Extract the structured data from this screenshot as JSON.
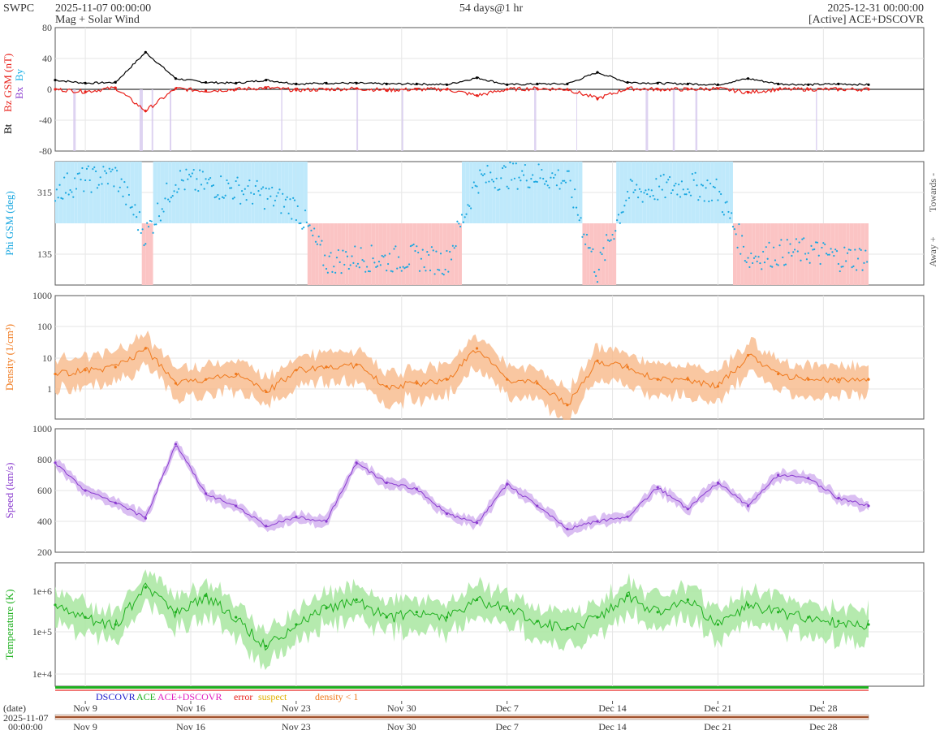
{
  "header": {
    "app": "SWPC",
    "start": "2025-11-07 00:00:00",
    "subtitle": "Mag + Solar Wind",
    "span": "54 days@1 hr",
    "end": "2025-12-31 00:00:00",
    "source": "[Active] ACE+DSCOVR"
  },
  "colors": {
    "bt": "#000000",
    "bz": "#e8201a",
    "bx": "#8a3ccf",
    "by": "#19b0e6",
    "towards": "#bfe9fb",
    "away": "#fbc4c4",
    "phi": "#19a7e0",
    "density": "#f07a1e",
    "density_band": "#f7b98a",
    "speed": "#8a3ccf",
    "speed_band": "#d4b3f0",
    "temp": "#1fb01f",
    "temp_band": "#a8e6a0",
    "axis": "#555555",
    "grid": "#e6e6e6"
  },
  "legend": {
    "dscovr": "DSCOVR",
    "ace": "ACE",
    "ace_dscovr": "ACE+DSCOVR",
    "error": "error",
    "suspect": "suspect",
    "density_flag": "density < 1"
  },
  "date_axis": {
    "label": "(date)",
    "start_date": "2025-11-07",
    "start_time": "00:00:00",
    "ticks": [
      "Nov 9",
      "Nov 16",
      "Nov 23",
      "Nov 30",
      "Dec 7",
      "Dec 14",
      "Dec 21",
      "Dec 28"
    ]
  },
  "chart_data": [
    {
      "type": "line",
      "name": "mag",
      "ylabel_parts": [
        "Bt",
        "Bz GSM (nT)",
        "Bx",
        "By"
      ],
      "ylim": [
        -80,
        80
      ],
      "yticks": [
        "80",
        "40",
        "0",
        "-40",
        "-80"
      ],
      "x": [
        0,
        2,
        4,
        6,
        8,
        10,
        12,
        14,
        16,
        18,
        20,
        22,
        24,
        26,
        28,
        30,
        32,
        34,
        36,
        38,
        40,
        42,
        44,
        46,
        48,
        50,
        52,
        54
      ],
      "series": [
        {
          "name": "Bt",
          "values": [
            12,
            8,
            9,
            48,
            14,
            9,
            8,
            12,
            7,
            8,
            8,
            7,
            7,
            6,
            15,
            6,
            7,
            7,
            22,
            9,
            8,
            7,
            6,
            14,
            7,
            6,
            7,
            6
          ]
        },
        {
          "name": "Bz GSM",
          "values": [
            0,
            -3,
            2,
            -28,
            1,
            -2,
            0,
            2,
            -1,
            0,
            1,
            -1,
            0,
            0,
            -8,
            0,
            1,
            0,
            -12,
            1,
            0,
            0,
            1,
            -4,
            0,
            0,
            0,
            0
          ]
        }
      ]
    },
    {
      "type": "scatter",
      "name": "phi",
      "ylabel": "Phi GSM (deg)",
      "yticks": [
        "315",
        "135"
      ],
      "right_labels": [
        "Towards -",
        "Away +"
      ],
      "x": [
        0,
        2,
        4,
        6,
        8,
        10,
        12,
        14,
        16,
        18,
        20,
        22,
        24,
        26,
        28,
        30,
        32,
        34,
        36,
        38,
        40,
        42,
        44,
        46,
        48,
        50,
        52,
        54
      ],
      "values": [
        300,
        320,
        330,
        200,
        320,
        310,
        300,
        285,
        260,
        140,
        150,
        145,
        150,
        140,
        320,
        330,
        330,
        320,
        120,
        290,
        300,
        310,
        295,
        150,
        160,
        165,
        150,
        150
      ]
    },
    {
      "type": "line",
      "name": "density",
      "ylabel": "Density (1/cm³)",
      "scale": "log",
      "yticks": [
        "1000",
        "100",
        "10",
        "1"
      ],
      "x": [
        0,
        2,
        4,
        6,
        8,
        10,
        12,
        14,
        16,
        18,
        20,
        22,
        24,
        26,
        28,
        30,
        32,
        34,
        36,
        38,
        40,
        42,
        44,
        46,
        48,
        50,
        52,
        54
      ],
      "values": [
        3,
        4,
        5,
        20,
        1.5,
        2,
        3,
        0.8,
        4,
        5,
        6,
        1.2,
        1.5,
        2,
        20,
        2,
        1.5,
        0.3,
        8,
        5,
        2,
        2,
        1.2,
        12,
        3,
        2,
        2,
        2
      ]
    },
    {
      "type": "line",
      "name": "speed",
      "ylabel": "Speed (km/s)",
      "ylim": [
        200,
        1000
      ],
      "yticks": [
        "1000",
        "800",
        "600",
        "400",
        "200"
      ],
      "x": [
        0,
        2,
        4,
        6,
        8,
        10,
        12,
        14,
        16,
        18,
        20,
        22,
        24,
        26,
        28,
        30,
        32,
        34,
        36,
        38,
        40,
        42,
        44,
        46,
        48,
        50,
        52,
        54
      ],
      "values": [
        780,
        600,
        520,
        420,
        900,
        580,
        500,
        370,
        430,
        400,
        780,
        650,
        610,
        450,
        390,
        640,
        500,
        350,
        400,
        430,
        620,
        480,
        650,
        500,
        700,
        680,
        550,
        500
      ]
    },
    {
      "type": "line",
      "name": "temperature",
      "ylabel": "Temperature (K)",
      "scale": "log",
      "yticks": [
        "1e+6",
        "1e+5",
        "1e+4"
      ],
      "x": [
        0,
        2,
        4,
        6,
        8,
        10,
        12,
        14,
        16,
        18,
        20,
        22,
        24,
        26,
        28,
        30,
        32,
        34,
        36,
        38,
        40,
        42,
        44,
        46,
        48,
        50,
        52,
        54
      ],
      "values": [
        300000,
        150000,
        100000,
        800000,
        200000,
        500000,
        150000,
        30000,
        100000,
        250000,
        400000,
        150000,
        200000,
        150000,
        400000,
        250000,
        120000,
        80000,
        150000,
        500000,
        200000,
        400000,
        100000,
        300000,
        200000,
        150000,
        120000,
        100000
      ]
    }
  ]
}
